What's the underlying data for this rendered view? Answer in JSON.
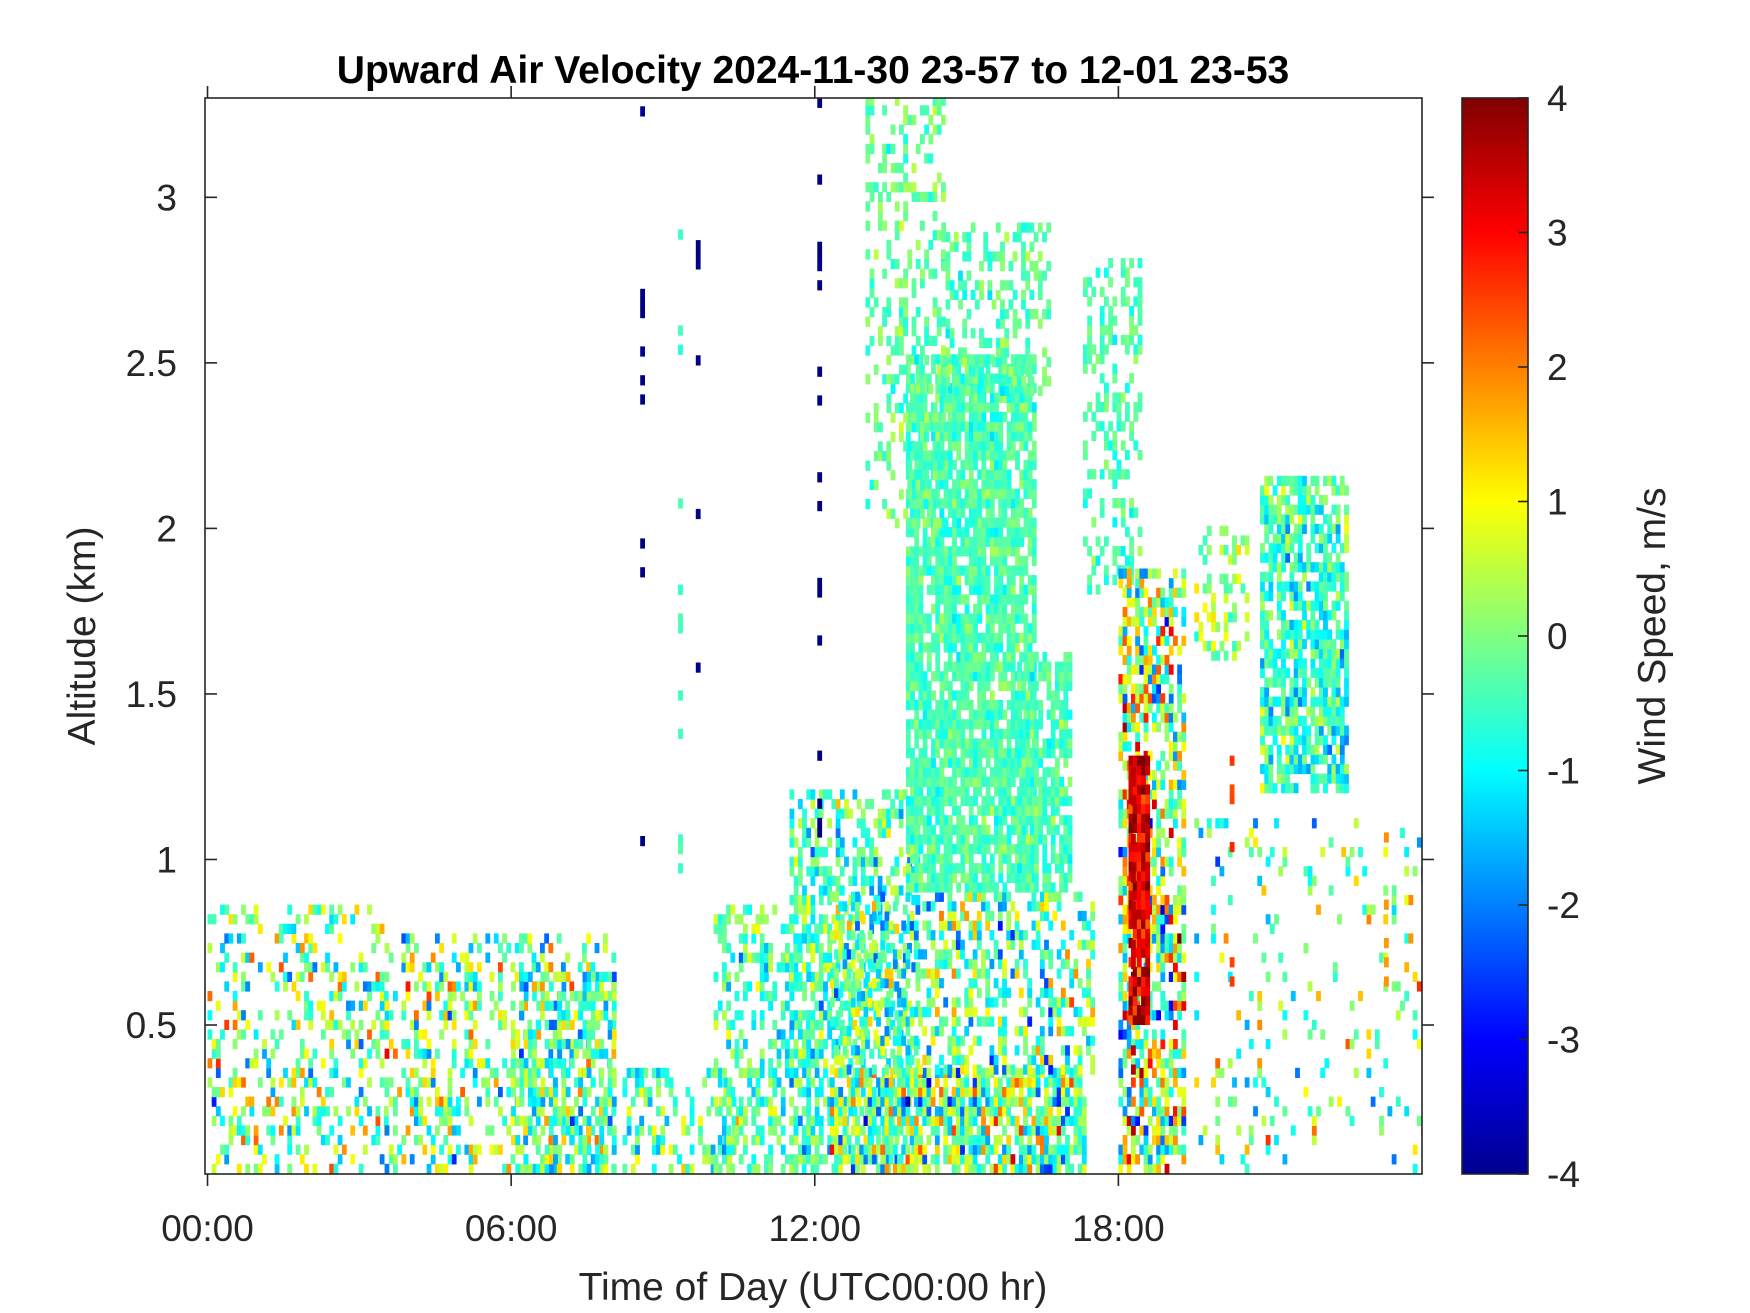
{
  "chart_data": {
    "type": "heatmap",
    "title": "Upward Air Velocity 2024-11-30 23-57 to 12-01 23-53",
    "xlabel": "Time of Day (UTC00:00 hr)",
    "ylabel": "Altitude (km)",
    "x_ticks": [
      "00:00",
      "06:00",
      "12:00",
      "18:00"
    ],
    "x_tick_hours": [
      0,
      6,
      12,
      18
    ],
    "xlim_hours": [
      -0.05,
      24.0
    ],
    "y_ticks": [
      "0.5",
      "1",
      "1.5",
      "2",
      "2.5",
      "3"
    ],
    "y_tick_values": [
      0.5,
      1,
      1.5,
      2,
      2.5,
      3
    ],
    "ylim_km": [
      0.05,
      3.3
    ],
    "grid": false,
    "colorbar": {
      "label": "Wind Speed, m/s",
      "colormap": "jet",
      "range": [
        -4,
        4
      ],
      "ticks": [
        "4",
        "3",
        "2",
        "1",
        "0",
        "-1",
        "-2",
        "-3",
        "-4"
      ],
      "tick_values": [
        4,
        3,
        2,
        1,
        0,
        -1,
        -2,
        -3,
        -4
      ],
      "colors": [
        "#00008f",
        "#0000ff",
        "#00ffff",
        "#ffff00",
        "#ff0000",
        "#800000"
      ]
    },
    "regions": [
      {
        "t": [
          0.0,
          3.5
        ],
        "alt": [
          0.05,
          0.85
        ],
        "v_mean": 0.0,
        "spread": 1.6,
        "density": 0.3
      },
      {
        "t": [
          3.5,
          8.0
        ],
        "alt": [
          0.05,
          0.75
        ],
        "v_mean": 0.0,
        "spread": 1.6,
        "density": 0.32
      },
      {
        "t": [
          6.0,
          8.0
        ],
        "alt": [
          0.05,
          0.65
        ],
        "v_mean": -0.3,
        "spread": 1.3,
        "density": 0.5
      },
      {
        "t": [
          8.2,
          10.5
        ],
        "alt": [
          0.05,
          0.35
        ],
        "v_mean": -0.3,
        "spread": 1.2,
        "density": 0.35
      },
      {
        "t": [
          10.0,
          12.0
        ],
        "alt": [
          0.05,
          0.85
        ],
        "v_mean": -0.4,
        "spread": 1.0,
        "density": 0.4
      },
      {
        "t": [
          11.5,
          14.0
        ],
        "alt": [
          0.05,
          1.2
        ],
        "v_mean": -0.4,
        "spread": 1.1,
        "density": 0.45
      },
      {
        "t": [
          12.3,
          17.3
        ],
        "alt": [
          0.05,
          0.35
        ],
        "v_mean": 0.0,
        "spread": 1.8,
        "density": 0.75
      },
      {
        "t": [
          12.3,
          17.5
        ],
        "alt": [
          0.35,
          0.9
        ],
        "v_mean": -0.3,
        "spread": 1.5,
        "density": 0.42
      },
      {
        "t": [
          13.8,
          16.3
        ],
        "alt": [
          0.9,
          2.5
        ],
        "v_mean": -0.4,
        "spread": 0.45,
        "density": 0.82
      },
      {
        "t": [
          13.0,
          14.5
        ],
        "alt": [
          2.0,
          3.3
        ],
        "v_mean": -0.2,
        "spread": 0.5,
        "density": 0.3
      },
      {
        "t": [
          14.5,
          16.6
        ],
        "alt": [
          2.4,
          2.9
        ],
        "v_mean": -0.3,
        "spread": 0.5,
        "density": 0.35
      },
      {
        "t": [
          16.0,
          17.0
        ],
        "alt": [
          0.9,
          1.6
        ],
        "v_mean": -0.4,
        "spread": 0.5,
        "density": 0.7
      },
      {
        "t": [
          17.3,
          18.4
        ],
        "alt": [
          1.8,
          2.8
        ],
        "v_mean": -0.4,
        "spread": 0.5,
        "density": 0.35
      },
      {
        "t": [
          18.0,
          19.3
        ],
        "alt": [
          0.05,
          1.85
        ],
        "v_mean": 0.3,
        "spread": 2.0,
        "density": 0.6
      },
      {
        "t": [
          18.2,
          18.6
        ],
        "alt": [
          0.5,
          1.3
        ],
        "v_mean": 3.2,
        "spread": 0.8,
        "density": 0.9
      },
      {
        "t": [
          19.5,
          20.5
        ],
        "alt": [
          1.6,
          2.0
        ],
        "v_mean": 0.2,
        "spread": 0.8,
        "density": 0.35
      },
      {
        "t": [
          20.8,
          22.5
        ],
        "alt": [
          1.2,
          2.15
        ],
        "v_mean": -0.6,
        "spread": 0.9,
        "density": 0.7
      },
      {
        "t": [
          19.5,
          24.0
        ],
        "alt": [
          0.05,
          1.1
        ],
        "v_mean": 0.0,
        "spread": 1.6,
        "density": 0.1
      }
    ],
    "columns": [
      {
        "t": 8.55,
        "alt": [
          0.75,
          3.3
        ],
        "v": -4,
        "density": 0.12
      },
      {
        "t": 9.65,
        "alt": [
          1.1,
          2.9
        ],
        "v": -4,
        "density": 0.08
      },
      {
        "t": 9.3,
        "alt": [
          0.9,
          3.2
        ],
        "v": -0.5,
        "density": 0.12
      },
      {
        "t": 12.05,
        "alt": [
          0.95,
          3.3
        ],
        "v": -4,
        "density": 0.22
      },
      {
        "t": 18.25,
        "alt": [
          0.35,
          1.3
        ],
        "v": 3.5,
        "density": 0.55
      },
      {
        "t": 20.2,
        "alt": [
          0.5,
          1.3
        ],
        "v": 2.5,
        "density": 0.18
      },
      {
        "t": 23.25,
        "alt": [
          0.5,
          1.1
        ],
        "v": 1.8,
        "density": 0.2
      }
    ]
  }
}
